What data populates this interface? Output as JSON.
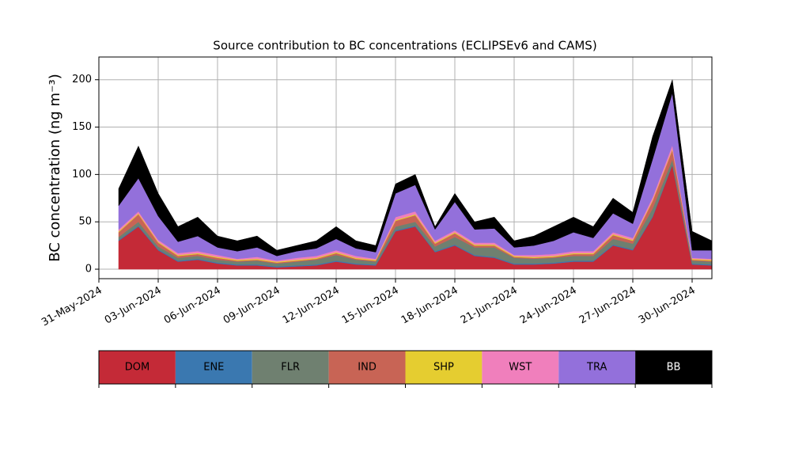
{
  "chart_data": {
    "type": "stacked_area",
    "title": "Source contribution to BC concentrations (ECLIPSEv6 and CAMS)",
    "y_label": "BC concentration (ng m⁻³)",
    "x": [
      "2024-06-01",
      "2024-06-02",
      "2024-06-03",
      "2024-06-04",
      "2024-06-05",
      "2024-06-06",
      "2024-06-07",
      "2024-06-08",
      "2024-06-09",
      "2024-06-10",
      "2024-06-11",
      "2024-06-12",
      "2024-06-13",
      "2024-06-14",
      "2024-06-15",
      "2024-06-16",
      "2024-06-17",
      "2024-06-18",
      "2024-06-19",
      "2024-06-20",
      "2024-06-21",
      "2024-06-22",
      "2024-06-23",
      "2024-06-24",
      "2024-06-25",
      "2024-06-26",
      "2024-06-27",
      "2024-06-28",
      "2024-06-29",
      "2024-06-30",
      "2024-07-01"
    ],
    "series": [
      {
        "name": "DOM",
        "color": "#c42a37",
        "values": [
          30,
          45,
          20,
          8,
          10,
          6,
          4,
          4,
          2,
          3,
          4,
          8,
          5,
          4,
          40,
          45,
          18,
          25,
          14,
          12,
          5,
          5,
          6,
          8,
          8,
          25,
          20,
          55,
          110,
          5,
          4
        ]
      },
      {
        "name": "ENE",
        "color": "#3a78b0",
        "values": [
          1,
          1,
          1,
          1,
          1,
          1,
          1,
          1,
          1,
          1,
          1,
          1,
          1,
          1,
          1,
          1,
          1,
          1,
          1,
          1,
          1,
          1,
          1,
          1,
          1,
          1,
          1,
          1,
          1,
          1,
          1
        ]
      },
      {
        "name": "FLR",
        "color": "#6f8070",
        "values": [
          3,
          4,
          3,
          3,
          3,
          3,
          3,
          4,
          3,
          4,
          5,
          6,
          4,
          3,
          4,
          4,
          5,
          8,
          8,
          10,
          6,
          5,
          5,
          5,
          5,
          6,
          6,
          8,
          5,
          3,
          3
        ]
      },
      {
        "name": "IND",
        "color": "#c86455",
        "values": [
          5,
          8,
          4,
          2,
          2,
          2,
          1,
          1,
          1,
          1,
          1,
          2,
          1,
          1,
          6,
          7,
          3,
          4,
          2,
          2,
          1,
          1,
          1,
          2,
          2,
          4,
          3,
          8,
          10,
          1,
          1
        ]
      },
      {
        "name": "SHP",
        "color": "#e5cd30",
        "values": [
          1,
          1,
          1,
          1,
          1,
          1,
          1,
          1,
          1,
          1,
          1,
          1,
          1,
          1,
          1,
          1,
          1,
          1,
          1,
          1,
          1,
          1,
          1,
          1,
          1,
          1,
          1,
          1,
          1,
          1,
          1
        ]
      },
      {
        "name": "WST",
        "color": "#f07fbc",
        "values": [
          2,
          2,
          2,
          2,
          2,
          2,
          1,
          2,
          1,
          2,
          2,
          2,
          2,
          1,
          3,
          3,
          2,
          2,
          2,
          2,
          1,
          2,
          2,
          2,
          2,
          2,
          2,
          3,
          4,
          1,
          1
        ]
      },
      {
        "name": "TRA",
        "color": "#9370db",
        "values": [
          25,
          35,
          25,
          12,
          16,
          8,
          8,
          10,
          5,
          7,
          8,
          12,
          8,
          7,
          25,
          28,
          12,
          30,
          14,
          15,
          8,
          10,
          14,
          20,
          14,
          20,
          15,
          40,
          55,
          8,
          9
        ]
      },
      {
        "name": "BB",
        "color": "#000000",
        "values": [
          18,
          34,
          24,
          16,
          20,
          12,
          11,
          12,
          6,
          6,
          8,
          13,
          8,
          7,
          10,
          11,
          3,
          9,
          8,
          12,
          7,
          10,
          15,
          16,
          12,
          16,
          12,
          24,
          14,
          20,
          10
        ]
      }
    ],
    "xlim": [
      "2024-05-31",
      "2024-07-01"
    ],
    "xticks": [
      {
        "value": "2024-05-31",
        "label": "31-May-2024"
      },
      {
        "value": "2024-06-03",
        "label": "03-Jun-2024"
      },
      {
        "value": "2024-06-06",
        "label": "06-Jun-2024"
      },
      {
        "value": "2024-06-09",
        "label": "09-Jun-2024"
      },
      {
        "value": "2024-06-12",
        "label": "12-Jun-2024"
      },
      {
        "value": "2024-06-15",
        "label": "15-Jun-2024"
      },
      {
        "value": "2024-06-18",
        "label": "18-Jun-2024"
      },
      {
        "value": "2024-06-21",
        "label": "21-Jun-2024"
      },
      {
        "value": "2024-06-24",
        "label": "24-Jun-2024"
      },
      {
        "value": "2024-06-27",
        "label": "27-Jun-2024"
      },
      {
        "value": "2024-06-30",
        "label": "30-Jun-2024"
      }
    ],
    "ylim": [
      -10,
      224
    ],
    "yticks": [
      0,
      50,
      100,
      150,
      200
    ],
    "grid": true
  }
}
